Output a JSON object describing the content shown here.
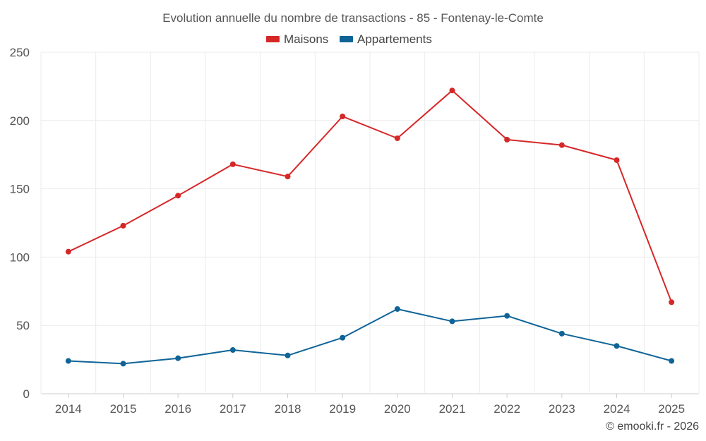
{
  "chart_data": {
    "type": "line",
    "title": "Evolution annuelle du nombre de transactions - 85 - Fontenay-le-Comte",
    "categories": [
      "2014",
      "2015",
      "2016",
      "2017",
      "2018",
      "2019",
      "2020",
      "2021",
      "2022",
      "2023",
      "2024",
      "2025"
    ],
    "series": [
      {
        "name": "Maisons",
        "color": "#d62728",
        "values": [
          104,
          123,
          145,
          168,
          159,
          203,
          187,
          222,
          186,
          182,
          171,
          67
        ]
      },
      {
        "name": "Appartements",
        "color": "#0f6497",
        "values": [
          24,
          22,
          26,
          32,
          28,
          41,
          62,
          53,
          57,
          44,
          35,
          24
        ]
      }
    ],
    "ylim": [
      0,
      250
    ],
    "yticks": [
      "0",
      "50",
      "100",
      "150",
      "200",
      "250"
    ],
    "xlabel": "",
    "ylabel": "",
    "grid": true,
    "legend": "top-center"
  },
  "credit": "© emooki.fr - 2026"
}
